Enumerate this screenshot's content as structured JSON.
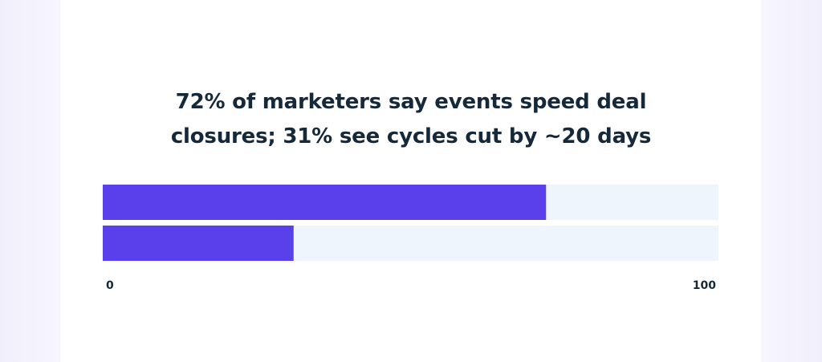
{
  "chart_data": {
    "type": "bar",
    "orientation": "horizontal",
    "title": "72% of marketers say events speed deal closures; 31% see cycles cut by ~20 days",
    "values": [
      72,
      31
    ],
    "color": "#5a40ea",
    "track_color": "#eef5fd",
    "xlim": [
      0,
      100
    ],
    "xticks": [
      0,
      100
    ]
  }
}
